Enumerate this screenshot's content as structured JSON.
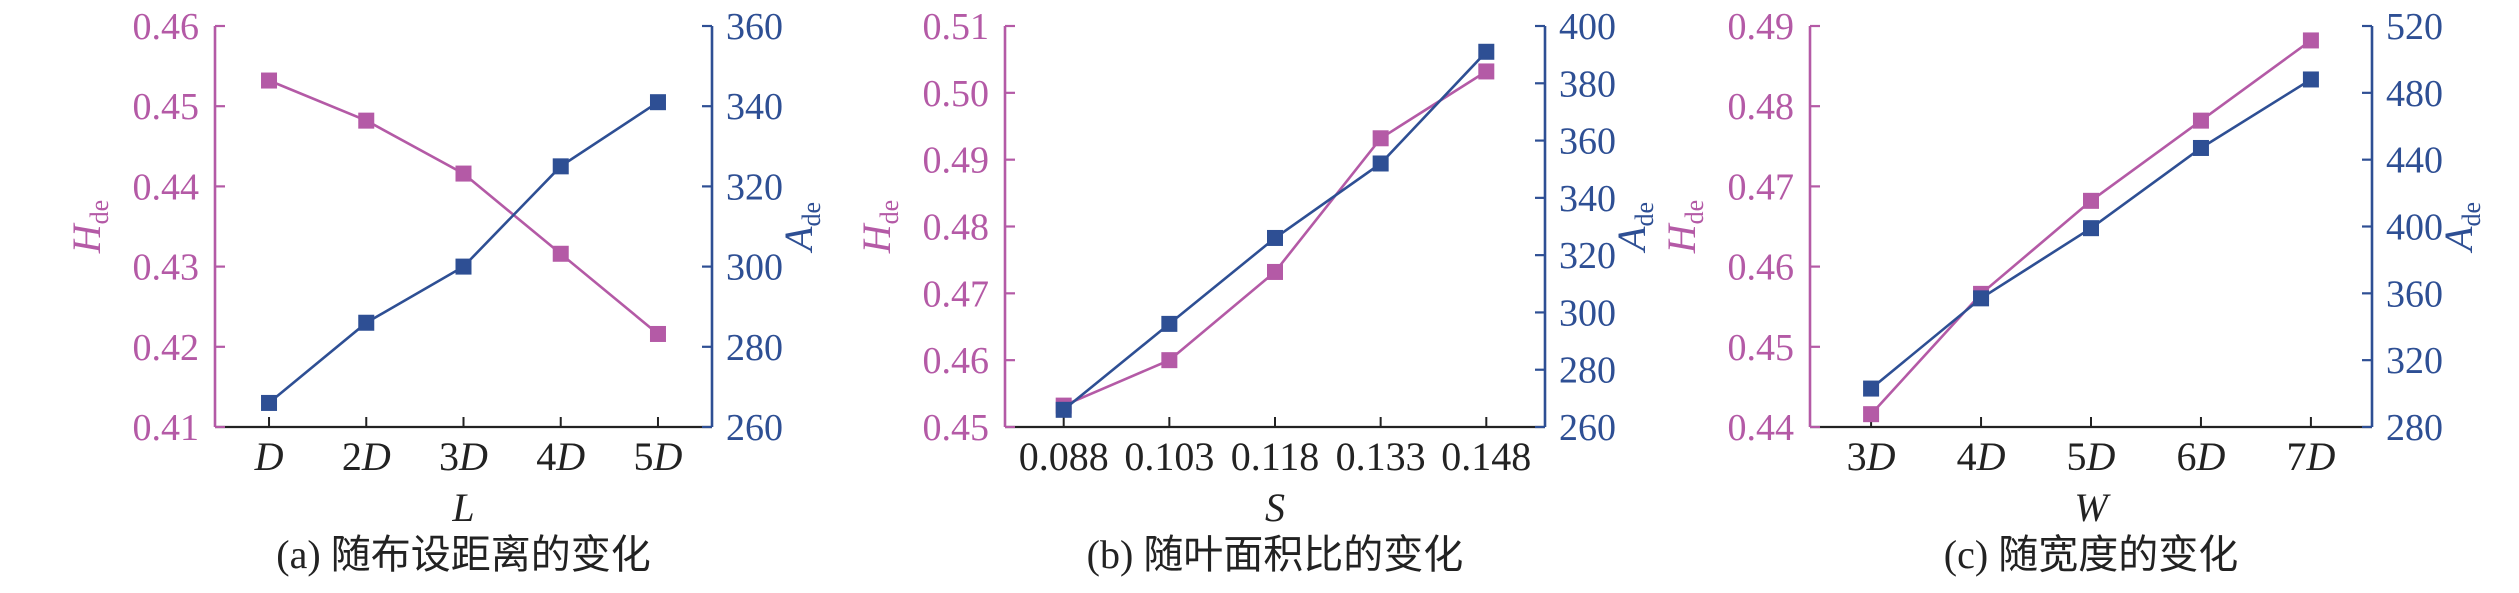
{
  "colors": {
    "left_series": "#b45aa6",
    "right_series": "#2e4f94",
    "axis_left": "#b45aa6",
    "axis_right": "#2e4f94"
  },
  "chart_data": [
    {
      "type": "line",
      "caption": "(a) 随布设距离的变化",
      "xlabel": "L",
      "categories": [
        "D",
        "2D",
        "3D",
        "4D",
        "5D"
      ],
      "y_left": {
        "label_main": "H",
        "label_sub": "de",
        "ylim": [
          0.41,
          0.46
        ],
        "ticks": [
          "0.41",
          "0.42",
          "0.43",
          "0.44",
          "0.45",
          "0.46"
        ]
      },
      "y_right": {
        "label_main": "A",
        "label_sub": "de",
        "ylim": [
          260,
          360
        ],
        "ticks": [
          "260",
          "280",
          "300",
          "320",
          "340",
          "360"
        ]
      },
      "series": [
        {
          "axis": "left",
          "values": [
            0.4532,
            0.4482,
            0.4416,
            0.4316,
            0.4216
          ]
        },
        {
          "axis": "right",
          "values": [
            266,
            286,
            300,
            325,
            341
          ]
        }
      ]
    },
    {
      "type": "line",
      "caption": "(b) 随叶面积比的变化",
      "xlabel": "S",
      "categories": [
        "0.088",
        "0.103",
        "0.118",
        "0.133",
        "0.148"
      ],
      "y_left": {
        "label_main": "H",
        "label_sub": "de",
        "ylim": [
          0.45,
          0.51
        ],
        "ticks": [
          "0.45",
          "0.46",
          "0.47",
          "0.48",
          "0.49",
          "0.50",
          "0.51"
        ]
      },
      "y_right": {
        "label_main": "A",
        "label_sub": "de",
        "ylim": [
          260,
          400
        ],
        "ticks": [
          "260",
          "280",
          "300",
          "320",
          "340",
          "360",
          "380",
          "400"
        ]
      },
      "series": [
        {
          "axis": "left",
          "values": [
            0.4532,
            0.46,
            0.4732,
            0.4932,
            0.5032
          ]
        },
        {
          "axis": "right",
          "values": [
            266,
            296,
            326,
            352,
            391
          ]
        }
      ]
    },
    {
      "type": "line",
      "caption": "(c) 随宽度的变化",
      "xlabel": "W",
      "categories": [
        "3D",
        "4D",
        "5D",
        "6D",
        "7D"
      ],
      "y_left": {
        "label_main": "H",
        "label_sub": "de",
        "ylim": [
          0.44,
          0.49
        ],
        "ticks": [
          "0.44",
          "0.45",
          "0.46",
          "0.47",
          "0.48",
          "0.49"
        ]
      },
      "y_right": {
        "label_main": "A",
        "label_sub": "de",
        "ylim": [
          280,
          520
        ],
        "ticks": [
          "280",
          "320",
          "360",
          "400",
          "440",
          "480",
          "520"
        ]
      },
      "series": [
        {
          "axis": "left",
          "values": [
            0.4416,
            0.4566,
            0.4682,
            0.4782,
            0.4882
          ]
        },
        {
          "axis": "right",
          "values": [
            303,
            357,
            399,
            447,
            488
          ]
        }
      ]
    }
  ]
}
